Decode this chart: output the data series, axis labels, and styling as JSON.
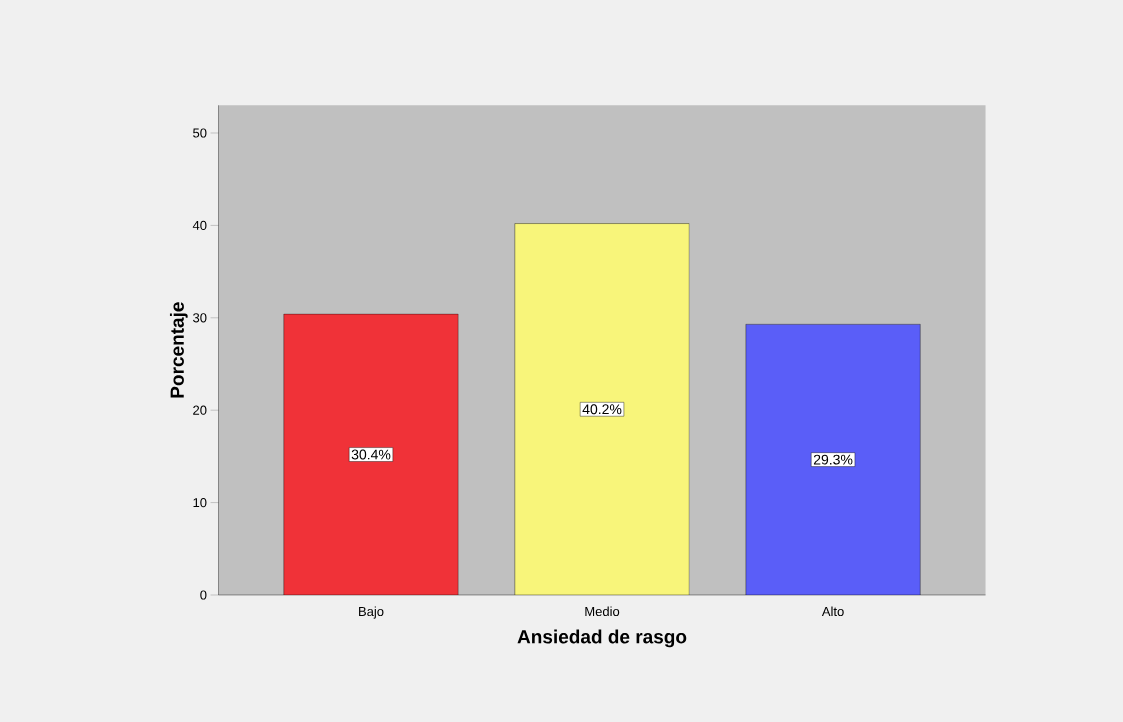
{
  "chart_data": {
    "type": "bar",
    "xlabel": "Ansiedad de rasgo",
    "ylabel": "Porcentaje",
    "categories": [
      "Bajo",
      "Medio",
      "Alto"
    ],
    "values": [
      30.4,
      40.2,
      29.3
    ],
    "colors": [
      "#f03238",
      "#f8f57a",
      "#5a5ef8"
    ],
    "value_labels": [
      "30.4%",
      "40.2%",
      "29.3%"
    ],
    "ylim": [
      0,
      53
    ],
    "yticks": [
      0,
      10,
      20,
      30,
      40,
      50
    ]
  }
}
